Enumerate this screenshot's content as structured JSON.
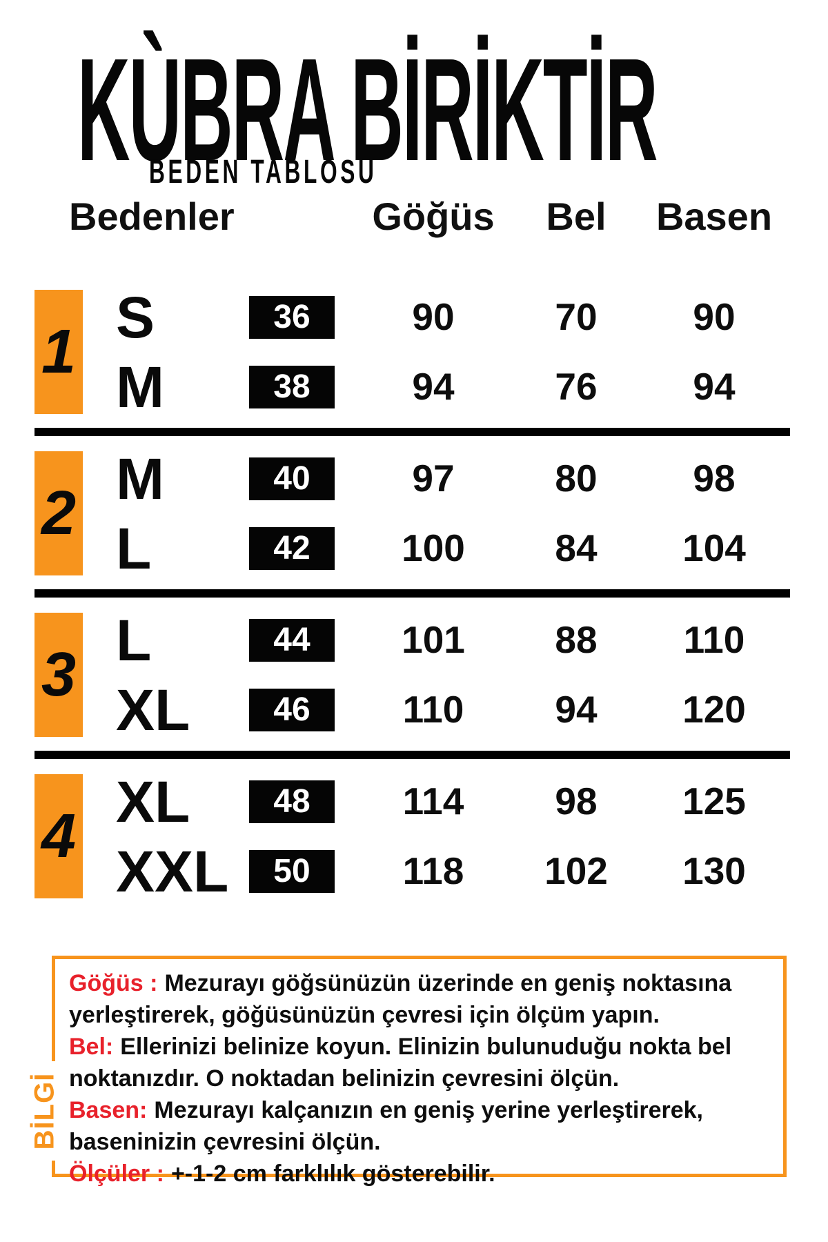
{
  "brand": {
    "name": "KÙBRA BİRİKTİR",
    "subtitle": "BEDEN TABLOSU"
  },
  "table": {
    "headers": {
      "sizes": "Bedenler",
      "chest": "Göğüs",
      "waist": "Bel",
      "hips": "Basen"
    },
    "groups": [
      {
        "number": "1",
        "rows": [
          {
            "size": "S",
            "eu": "36",
            "chest": "90",
            "waist": "70",
            "hips": "90"
          },
          {
            "size": "M",
            "eu": "38",
            "chest": "94",
            "waist": "76",
            "hips": "94"
          }
        ]
      },
      {
        "number": "2",
        "rows": [
          {
            "size": "M",
            "eu": "40",
            "chest": "97",
            "waist": "80",
            "hips": "98"
          },
          {
            "size": "L",
            "eu": "42",
            "chest": "100",
            "waist": "84",
            "hips": "104"
          }
        ]
      },
      {
        "number": "3",
        "rows": [
          {
            "size": "L",
            "eu": "44",
            "chest": "101",
            "waist": "88",
            "hips": "110"
          },
          {
            "size": "XL",
            "eu": "46",
            "chest": "110",
            "waist": "94",
            "hips": "120"
          }
        ]
      },
      {
        "number": "4",
        "rows": [
          {
            "size": "XL",
            "eu": "48",
            "chest": "114",
            "waist": "98",
            "hips": "125"
          },
          {
            "size": "XXL",
            "eu": "50",
            "chest": "118",
            "waist": "102",
            "hips": "130"
          }
        ]
      }
    ]
  },
  "info": {
    "side_label": "BİLGİ",
    "items": [
      {
        "label": "Göğüs :",
        "text": "Mezurayı göğsünüzün üzerinde en geniş noktasına yerleştirerek,  göğüsünüzün çevresi için ölçüm yapın."
      },
      {
        "label": "Bel:",
        "text": "Ellerinizi belinize koyun. Elinizin bulunuduğu nokta bel noktanızdır. O noktadan belinizin çevresini ölçün."
      },
      {
        "label": "Basen:",
        "text": "Mezurayı kalçanızın en geniş yerine yerleştirerek, baseninizin çevresini ölçün."
      },
      {
        "label": "Ölçüler :",
        "text": "+-1-2 cm farklılık gösterebilir."
      }
    ]
  },
  "colors": {
    "orange": "#F7941D",
    "red": "#E8212B",
    "black": "#050505",
    "badge_text": "#FFFFFF"
  }
}
